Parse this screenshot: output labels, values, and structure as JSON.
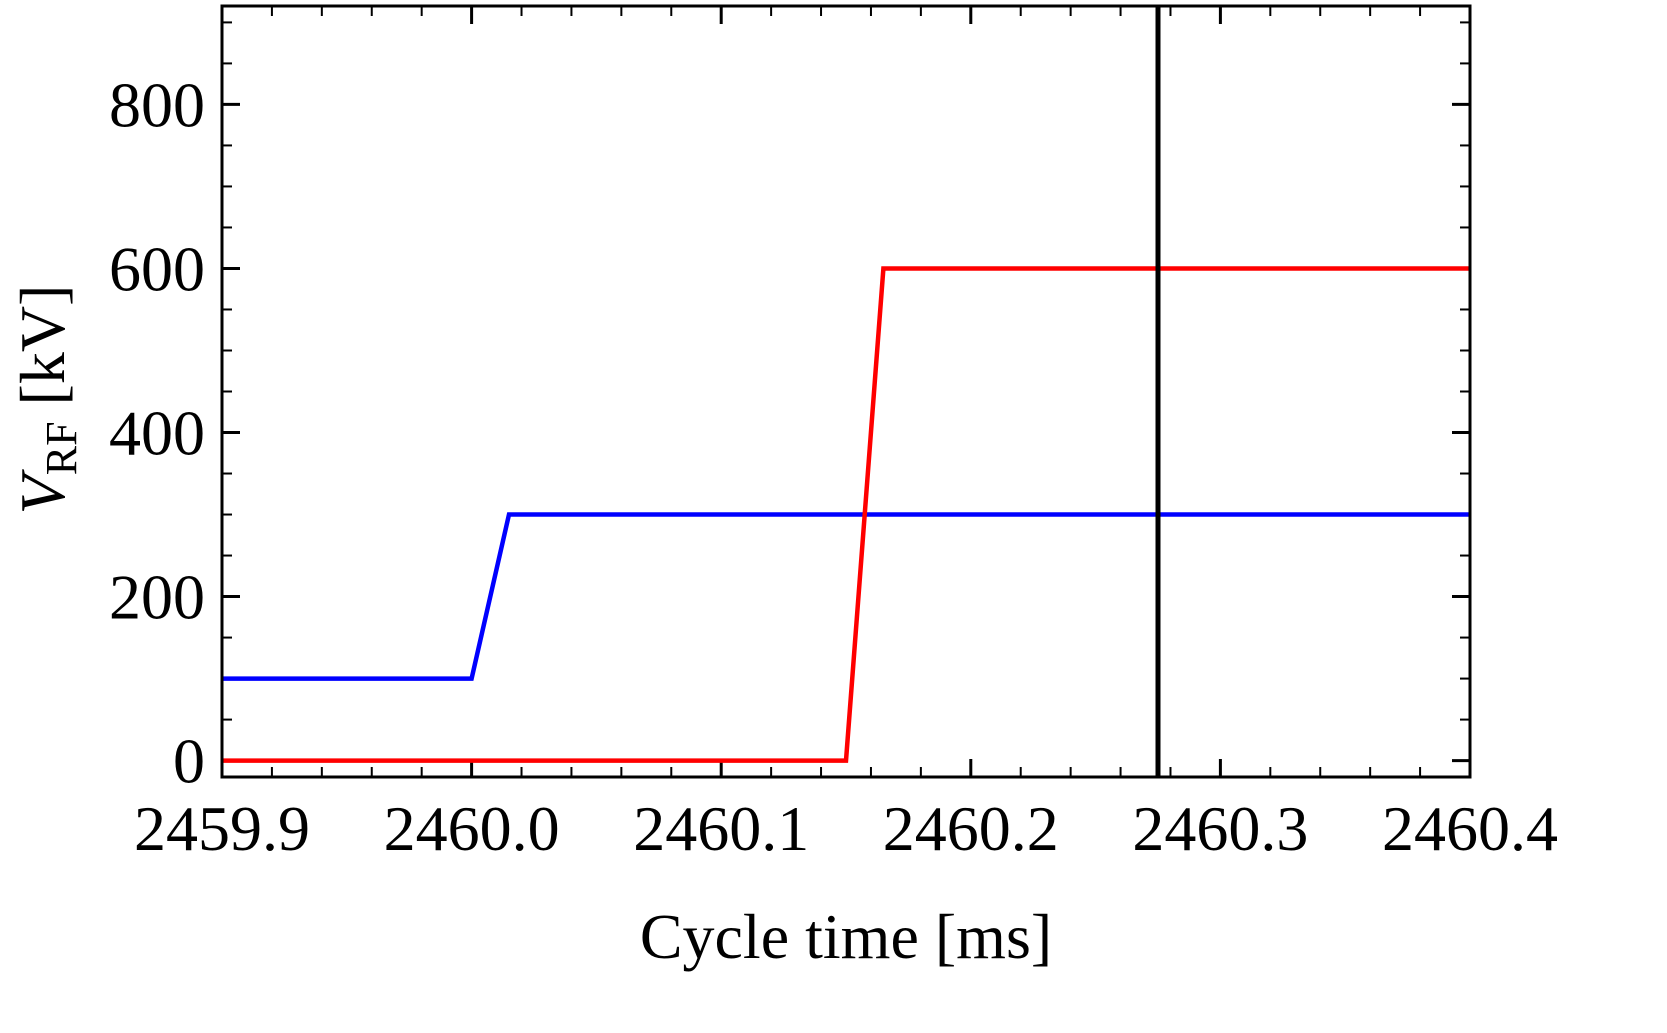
{
  "chart_data": {
    "type": "line",
    "xlabel": "Cycle time [ms]",
    "ylabel": {
      "symbol": "V",
      "subscript": "RF",
      "unit": " [kV]"
    },
    "xlim": [
      2459.9,
      2460.4
    ],
    "ylim": [
      -20,
      920
    ],
    "x_ticks": [
      2459.9,
      2460.0,
      2460.1,
      2460.2,
      2460.3,
      2460.4
    ],
    "x_tick_labels": [
      "2459.9",
      "2460.0",
      "2460.1",
      "2460.2",
      "2460.3",
      "2460.4"
    ],
    "y_ticks": [
      0,
      200,
      400,
      600,
      800
    ],
    "y_tick_labels": [
      "0",
      "200",
      "400",
      "600",
      "800"
    ],
    "grid": false,
    "series": [
      {
        "color": "#0000ff",
        "x": [
          2459.9,
          2460.0,
          2460.015,
          2460.4
        ],
        "y": [
          100,
          100,
          300,
          300
        ]
      },
      {
        "color": "#ff0000",
        "x": [
          2459.9,
          2460.15,
          2460.165,
          2460.4
        ],
        "y": [
          0,
          0,
          600,
          600
        ]
      }
    ],
    "vertical_lines": [
      {
        "x": 2460.275,
        "color": "#000000"
      }
    ]
  }
}
